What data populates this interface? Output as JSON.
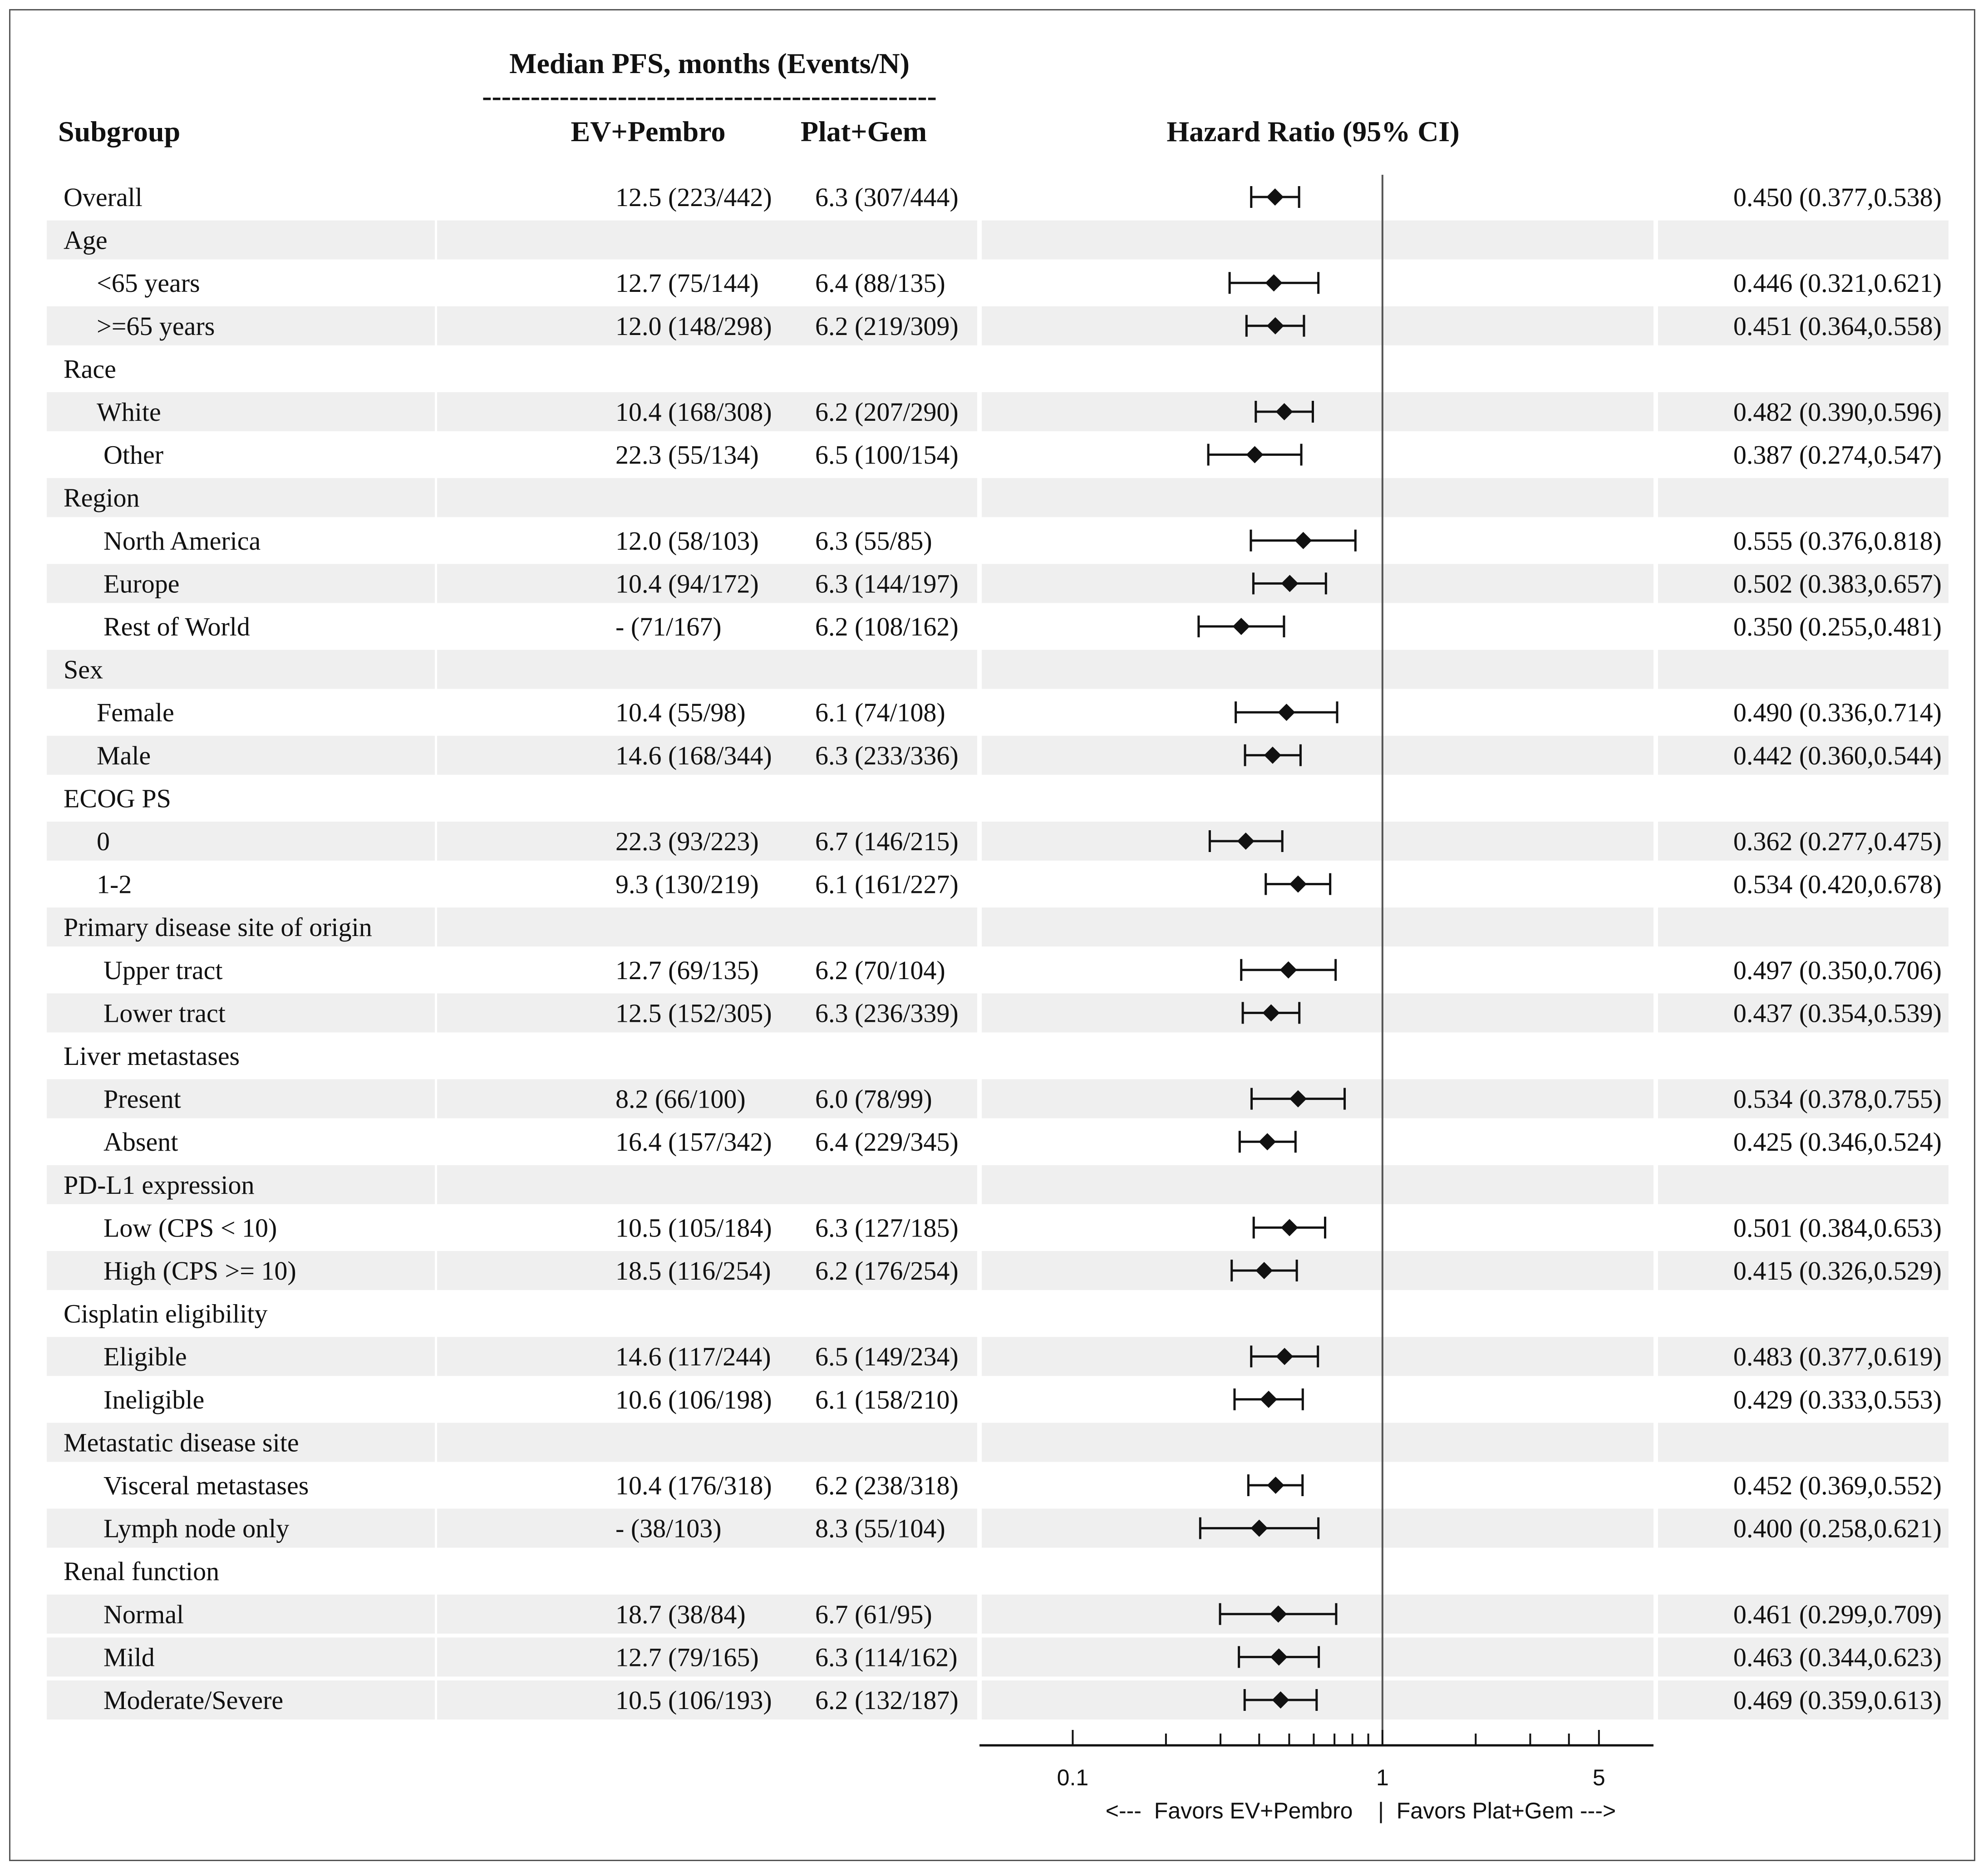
{
  "chart_data": {
    "type": "forest",
    "header_group": "Median PFS, months (Events/N)",
    "header_divider": "-----------------------------------------------",
    "columns": {
      "subgroup": "Subgroup",
      "arm1": "EV+Pembro",
      "arm2": "Plat+Gem",
      "hr": "Hazard Ratio (95% CI)"
    },
    "x_axis": {
      "scale": "log",
      "range": [
        0.05,
        7.5
      ],
      "ticks": [
        {
          "value": 0.1,
          "label": "0.1"
        },
        {
          "value": 0.2,
          "label": ""
        },
        {
          "value": 0.3,
          "label": ""
        },
        {
          "value": 0.4,
          "label": ""
        },
        {
          "value": 0.5,
          "label": ""
        },
        {
          "value": 0.6,
          "label": ""
        },
        {
          "value": 0.7,
          "label": ""
        },
        {
          "value": 0.8,
          "label": ""
        },
        {
          "value": 0.9,
          "label": ""
        },
        {
          "value": 1,
          "label": "1"
        },
        {
          "value": 2,
          "label": ""
        },
        {
          "value": 3,
          "label": ""
        },
        {
          "value": 4,
          "label": ""
        },
        {
          "value": 5,
          "label": "5"
        }
      ],
      "reference_line": 1,
      "direction_label": "<---  Favors EV+Pembro    |  Favors Plat+Gem --->"
    },
    "rows": [
      {
        "label": "Overall",
        "indent": 0,
        "shaded": false,
        "arm1": "12.5 (223/442)",
        "arm2": "6.3 (307/444)",
        "hr": 0.45,
        "lo": 0.377,
        "hi": 0.538,
        "hr_text": "0.450 (0.377,0.538)"
      },
      {
        "label": "Age",
        "indent": 0,
        "shaded": true,
        "header": true
      },
      {
        "label": "<65 years",
        "indent": 1,
        "shaded": false,
        "arm1": "12.7 (75/144)",
        "arm2": "6.4 (88/135)",
        "hr": 0.446,
        "lo": 0.321,
        "hi": 0.621,
        "hr_text": "0.446 (0.321,0.621)"
      },
      {
        "label": ">=65 years",
        "indent": 1,
        "shaded": true,
        "arm1": "12.0 (148/298)",
        "arm2": "6.2 (219/309)",
        "hr": 0.451,
        "lo": 0.364,
        "hi": 0.558,
        "hr_text": "0.451 (0.364,0.558)"
      },
      {
        "label": "Race",
        "indent": 0,
        "shaded": false,
        "header": true
      },
      {
        "label": "White",
        "indent": 1,
        "shaded": true,
        "arm1": "10.4 (168/308)",
        "arm2": "6.2 (207/290)",
        "hr": 0.482,
        "lo": 0.39,
        "hi": 0.596,
        "hr_text": "0.482 (0.390,0.596)"
      },
      {
        "label": "Other",
        "indent": 2,
        "shaded": false,
        "arm1": "22.3 (55/134)",
        "arm2": "6.5 (100/154)",
        "hr": 0.387,
        "lo": 0.274,
        "hi": 0.547,
        "hr_text": "0.387 (0.274,0.547)"
      },
      {
        "label": "Region",
        "indent": 0,
        "shaded": true,
        "header": true
      },
      {
        "label": "North America",
        "indent": 2,
        "shaded": false,
        "arm1": "12.0 (58/103)",
        "arm2": "6.3 (55/85)",
        "hr": 0.555,
        "lo": 0.376,
        "hi": 0.818,
        "hr_text": "0.555 (0.376,0.818)"
      },
      {
        "label": "Europe",
        "indent": 2,
        "shaded": true,
        "arm1": "10.4 (94/172)",
        "arm2": "6.3 (144/197)",
        "hr": 0.502,
        "lo": 0.383,
        "hi": 0.657,
        "hr_text": "0.502 (0.383,0.657)"
      },
      {
        "label": "Rest of World",
        "indent": 2,
        "shaded": false,
        "arm1": "- (71/167)",
        "arm2": "6.2 (108/162)",
        "hr": 0.35,
        "lo": 0.255,
        "hi": 0.481,
        "hr_text": "0.350 (0.255,0.481)"
      },
      {
        "label": "Sex",
        "indent": 0,
        "shaded": true,
        "header": true
      },
      {
        "label": "Female",
        "indent": 1,
        "shaded": false,
        "arm1": "10.4 (55/98)",
        "arm2": "6.1 (74/108)",
        "hr": 0.49,
        "lo": 0.336,
        "hi": 0.714,
        "hr_text": "0.490 (0.336,0.714)"
      },
      {
        "label": "Male",
        "indent": 1,
        "shaded": true,
        "arm1": "14.6 (168/344)",
        "arm2": "6.3 (233/336)",
        "hr": 0.442,
        "lo": 0.36,
        "hi": 0.544,
        "hr_text": "0.442 (0.360,0.544)"
      },
      {
        "label": "ECOG PS",
        "indent": 0,
        "shaded": false,
        "header": true
      },
      {
        "label": "0",
        "indent": 1,
        "shaded": true,
        "arm1": "22.3 (93/223)",
        "arm2": "6.7 (146/215)",
        "hr": 0.362,
        "lo": 0.277,
        "hi": 0.475,
        "hr_text": "0.362 (0.277,0.475)"
      },
      {
        "label": "1-2",
        "indent": 1,
        "shaded": false,
        "arm1": "9.3 (130/219)",
        "arm2": "6.1 (161/227)",
        "hr": 0.534,
        "lo": 0.42,
        "hi": 0.678,
        "hr_text": "0.534 (0.420,0.678)"
      },
      {
        "label": "Primary disease site of origin",
        "indent": 0,
        "shaded": true,
        "header": true
      },
      {
        "label": "Upper tract",
        "indent": 2,
        "shaded": false,
        "arm1": "12.7 (69/135)",
        "arm2": "6.2 (70/104)",
        "hr": 0.497,
        "lo": 0.35,
        "hi": 0.706,
        "hr_text": "0.497 (0.350,0.706)"
      },
      {
        "label": "Lower tract",
        "indent": 2,
        "shaded": true,
        "arm1": "12.5 (152/305)",
        "arm2": "6.3 (236/339)",
        "hr": 0.437,
        "lo": 0.354,
        "hi": 0.539,
        "hr_text": "0.437 (0.354,0.539)"
      },
      {
        "label": "Liver metastases",
        "indent": 0,
        "shaded": false,
        "header": true
      },
      {
        "label": "Present",
        "indent": 2,
        "shaded": true,
        "arm1": "8.2 (66/100)",
        "arm2": "6.0 (78/99)",
        "hr": 0.534,
        "lo": 0.378,
        "hi": 0.755,
        "hr_text": "0.534 (0.378,0.755)"
      },
      {
        "label": "Absent",
        "indent": 2,
        "shaded": false,
        "arm1": "16.4 (157/342)",
        "arm2": "6.4 (229/345)",
        "hr": 0.425,
        "lo": 0.346,
        "hi": 0.524,
        "hr_text": "0.425 (0.346,0.524)"
      },
      {
        "label": "PD-L1 expression",
        "indent": 0,
        "shaded": true,
        "header": true
      },
      {
        "label": "Low (CPS < 10)",
        "indent": 2,
        "shaded": false,
        "arm1": "10.5 (105/184)",
        "arm2": "6.3 (127/185)",
        "hr": 0.501,
        "lo": 0.384,
        "hi": 0.653,
        "hr_text": "0.501 (0.384,0.653)"
      },
      {
        "label": "High (CPS >= 10)",
        "indent": 2,
        "shaded": true,
        "arm1": "18.5 (116/254)",
        "arm2": "6.2 (176/254)",
        "hr": 0.415,
        "lo": 0.326,
        "hi": 0.529,
        "hr_text": "0.415 (0.326,0.529)"
      },
      {
        "label": "Cisplatin eligibility",
        "indent": 0,
        "shaded": false,
        "header": true
      },
      {
        "label": "Eligible",
        "indent": 2,
        "shaded": true,
        "arm1": "14.6 (117/244)",
        "arm2": "6.5 (149/234)",
        "hr": 0.483,
        "lo": 0.377,
        "hi": 0.619,
        "hr_text": "0.483 (0.377,0.619)"
      },
      {
        "label": "Ineligible",
        "indent": 2,
        "shaded": false,
        "arm1": "10.6 (106/198)",
        "arm2": "6.1 (158/210)",
        "hr": 0.429,
        "lo": 0.333,
        "hi": 0.553,
        "hr_text": "0.429 (0.333,0.553)"
      },
      {
        "label": "Metastatic disease site",
        "indent": 0,
        "shaded": true,
        "header": true
      },
      {
        "label": "Visceral metastases",
        "indent": 2,
        "shaded": false,
        "arm1": "10.4 (176/318)",
        "arm2": "6.2 (238/318)",
        "hr": 0.452,
        "lo": 0.369,
        "hi": 0.552,
        "hr_text": "0.452 (0.369,0.552)"
      },
      {
        "label": "Lymph node only",
        "indent": 2,
        "shaded": true,
        "arm1": "- (38/103)",
        "arm2": "8.3 (55/104)",
        "hr": 0.4,
        "lo": 0.258,
        "hi": 0.621,
        "hr_text": "0.400 (0.258,0.621)"
      },
      {
        "label": "Renal function",
        "indent": 0,
        "shaded": false,
        "header": true
      },
      {
        "label": "Normal",
        "indent": 2,
        "shaded": true,
        "arm1": "18.7 (38/84)",
        "arm2": "6.7 (61/95)",
        "hr": 0.461,
        "lo": 0.299,
        "hi": 0.709,
        "hr_text": "0.461 (0.299,0.709)"
      },
      {
        "label": "Mild",
        "indent": 2,
        "shaded": true,
        "arm1": "12.7 (79/165)",
        "arm2": "6.3 (114/162)",
        "hr": 0.463,
        "lo": 0.344,
        "hi": 0.623,
        "hr_text": "0.463 (0.344,0.623)"
      },
      {
        "label": "Moderate/Severe",
        "indent": 2,
        "shaded": true,
        "arm1": "10.5 (106/193)",
        "arm2": "6.2 (132/187)",
        "hr": 0.469,
        "lo": 0.359,
        "hi": 0.613,
        "hr_text": "0.469 (0.359,0.613)"
      }
    ],
    "colors": {
      "shade": "#efefef",
      "ink": "#111111",
      "reference_line": "#555555"
    }
  }
}
